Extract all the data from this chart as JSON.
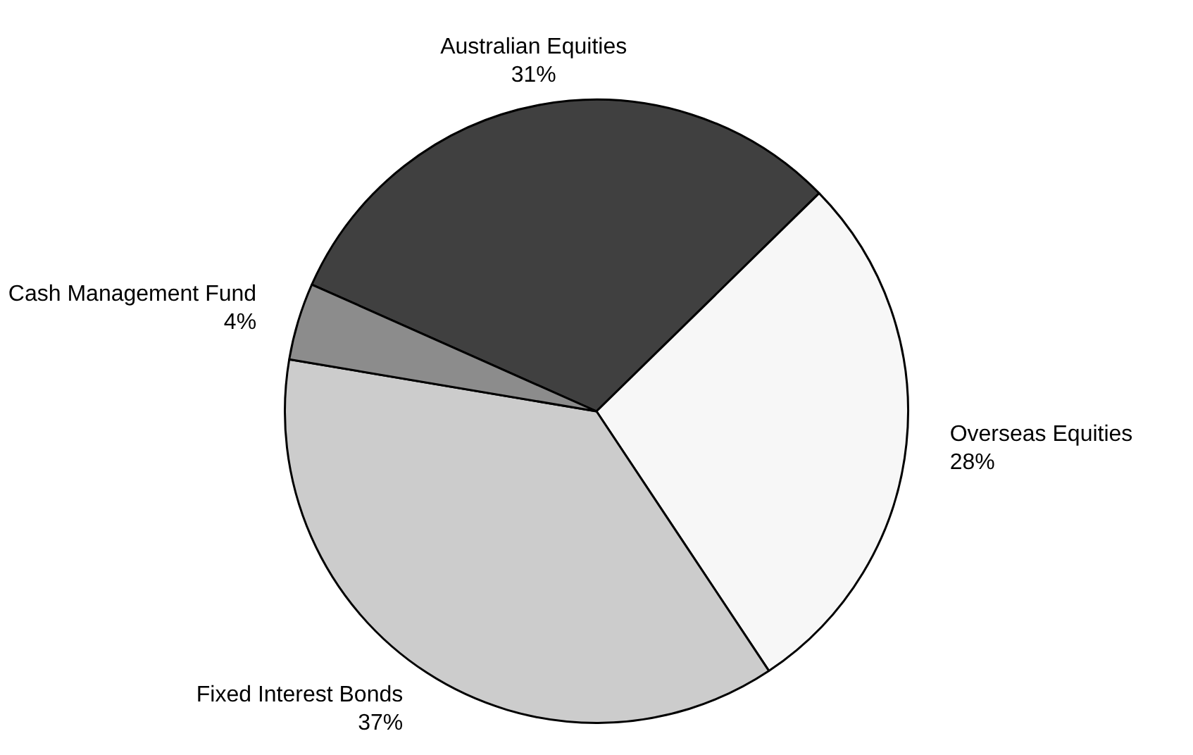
{
  "chart_data": {
    "type": "pie",
    "categories": [
      "Australian Equities",
      "Overseas Equities",
      "Fixed Interest Bonds",
      "Cash Management Fund"
    ],
    "values": [
      31,
      28,
      37,
      4
    ],
    "value_labels": [
      "31%",
      "28%",
      "37%",
      "4%"
    ],
    "colors": [
      "#404040",
      "#f7f7f7",
      "#cccccc",
      "#8c8c8c"
    ],
    "legend": false
  }
}
